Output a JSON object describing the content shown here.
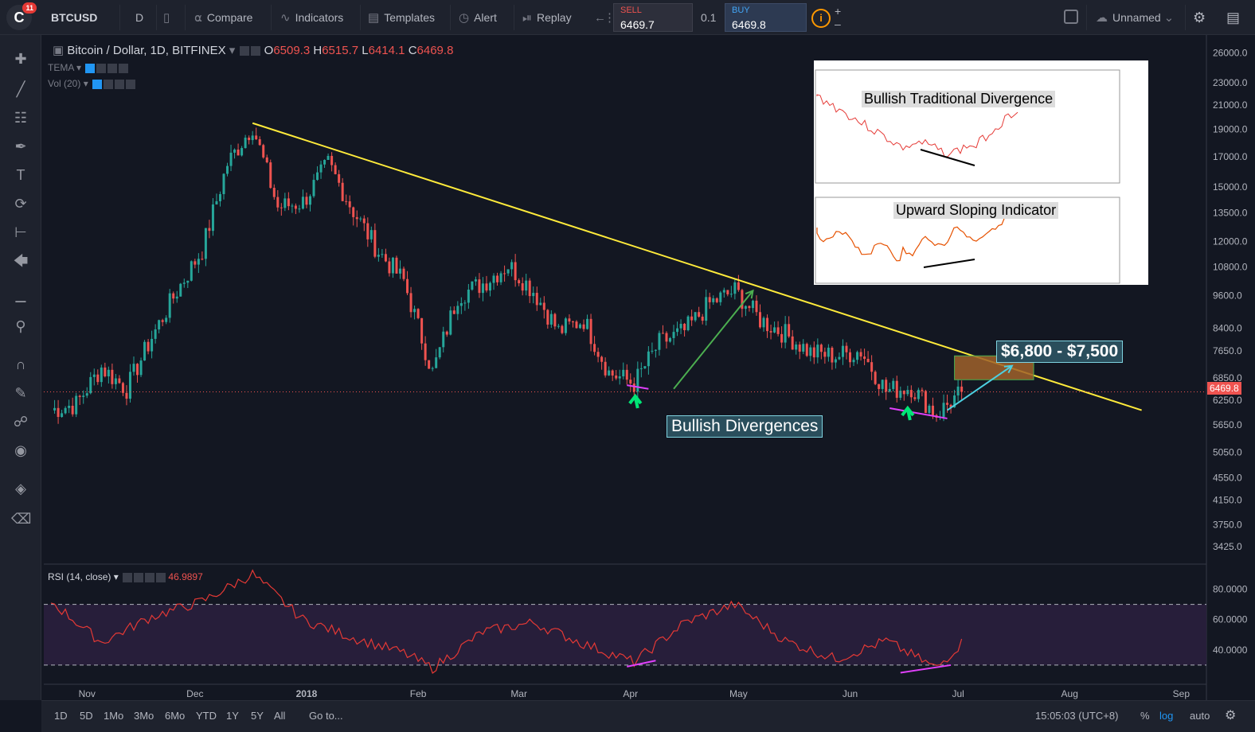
{
  "header": {
    "symbol": "BTCUSD",
    "interval": "D",
    "compare": "Compare",
    "indicators": "Indicators",
    "templates": "Templates",
    "alert": "Alert",
    "replay": "Replay",
    "sell_label": "SELL",
    "sell_price": "6469.7",
    "spread": "0.1",
    "buy_label": "BUY",
    "buy_price": "6469.8",
    "layout_name": "Unnamed",
    "notification_count": "11"
  },
  "chart": {
    "title": "Bitcoin / Dollar, 1D, BITFINEX",
    "open_label": "O",
    "open": "6509.3",
    "high_label": "H",
    "high": "6515.7",
    "low_label": "L",
    "low": "6414.1",
    "close_label": "C",
    "close": "6469.8",
    "tema_label": "TEMA",
    "vol_label": "Vol (20)",
    "rsi_label": "RSI (14, close)",
    "rsi_value": "46.9897",
    "last_price_tag": "6469.8",
    "annotation_target": "$6,800 - $7,500",
    "annotation_divergence": "Bullish Divergences",
    "inset_label_top": "Bullish Traditional Divergence",
    "inset_label_bottom": "Upward Sloping Indicator",
    "colors": {
      "up": "#26a69a",
      "down": "#ef5350",
      "trendline": "#ffeb3b",
      "rsi": "#e53935",
      "divergence": "#e040fb"
    }
  },
  "chart_data": {
    "type": "line",
    "symbol": "BTCUSD",
    "y_scale": "log",
    "ylim": [
      3200,
      28000
    ],
    "x_tick_labels": [
      "Nov",
      "Dec",
      "2018",
      "Feb",
      "Mar",
      "Apr",
      "May",
      "Jun",
      "Jul",
      "Aug",
      "Sep"
    ],
    "y_tick_labels": [
      "26000.0",
      "23000.0",
      "21000.0",
      "19000.0",
      "17000.0",
      "15000.0",
      "13500.0",
      "12000.0",
      "10800.0",
      "9600.0",
      "8400.0",
      "7650.0",
      "6850.0",
      "6250.0",
      "5650.0",
      "5050.0",
      "4550.0",
      "4150.0",
      "3750.0",
      "3425.0"
    ],
    "rsi_tick_labels": [
      "80.0000",
      "60.0000",
      "40.0000"
    ],
    "series": [
      {
        "values": [
          [
            "2017-10-22",
            6000
          ],
          [
            "2017-10-29",
            6150
          ],
          [
            "2017-11-05",
            7150
          ],
          [
            "2017-11-12",
            6550
          ],
          [
            "2017-11-19",
            8100
          ],
          [
            "2017-11-26",
            9800
          ],
          [
            "2017-12-03",
            11600
          ],
          [
            "2017-12-10",
            16500
          ],
          [
            "2017-12-17",
            19300
          ],
          [
            "2017-12-24",
            13800
          ],
          [
            "2017-12-31",
            14100
          ],
          [
            "2018-01-07",
            16500
          ],
          [
            "2018-01-14",
            13600
          ],
          [
            "2018-01-21",
            11500
          ],
          [
            "2018-01-28",
            10200
          ],
          [
            "2018-02-05",
            7000
          ],
          [
            "2018-02-12",
            9600
          ],
          [
            "2018-02-19",
            10100
          ],
          [
            "2018-02-26",
            10900
          ],
          [
            "2018-03-05",
            9800
          ],
          [
            "2018-03-12",
            8300
          ],
          [
            "2018-03-19",
            8700
          ],
          [
            "2018-03-26",
            7000
          ],
          [
            "2018-04-02",
            6700
          ],
          [
            "2018-04-09",
            7900
          ],
          [
            "2018-04-16",
            8300
          ],
          [
            "2018-04-23",
            9300
          ],
          [
            "2018-04-30",
            9800
          ],
          [
            "2018-05-07",
            8700
          ],
          [
            "2018-05-14",
            8200
          ],
          [
            "2018-05-21",
            7600
          ],
          [
            "2018-05-28",
            7500
          ],
          [
            "2018-06-04",
            7650
          ],
          [
            "2018-06-11",
            6500
          ],
          [
            "2018-06-18",
            6600
          ],
          [
            "2018-06-25",
            5900
          ],
          [
            "2018-07-02",
            6469.8
          ]
        ]
      }
    ],
    "rsi": [
      [
        "2017-10-22",
        72
      ],
      [
        "2017-11-05",
        45
      ],
      [
        "2017-11-19",
        62
      ],
      [
        "2017-12-03",
        72
      ],
      [
        "2017-12-17",
        90
      ],
      [
        "2017-12-31",
        60
      ],
      [
        "2018-01-14",
        48
      ],
      [
        "2018-01-28",
        38
      ],
      [
        "2018-02-05",
        28
      ],
      [
        "2018-02-19",
        52
      ],
      [
        "2018-03-05",
        58
      ],
      [
        "2018-03-19",
        44
      ],
      [
        "2018-04-02",
        32
      ],
      [
        "2018-04-16",
        58
      ],
      [
        "2018-04-30",
        70
      ],
      [
        "2018-05-14",
        46
      ],
      [
        "2018-05-28",
        34
      ],
      [
        "2018-06-11",
        46
      ],
      [
        "2018-06-25",
        28
      ],
      [
        "2018-07-03",
        47
      ]
    ],
    "trendline": [
      [
        "2017-12-17",
        19500
      ],
      [
        "2018-08-21",
        6000
      ]
    ],
    "target_zone": [
      6800,
      7500
    ]
  }
}
